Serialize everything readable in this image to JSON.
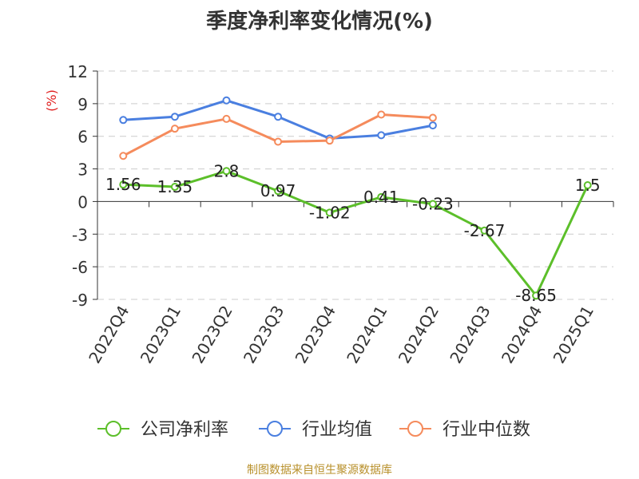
{
  "chart_data": {
    "type": "line",
    "title": "季度净利率变化情况(%)",
    "ylabel": "(%)",
    "ylim": [
      -9,
      12
    ],
    "yticks": [
      12,
      9,
      6,
      3,
      0,
      -3,
      -6,
      -9
    ],
    "grid": true,
    "legend_position": "bottom",
    "categories": [
      "2022Q4",
      "2023Q1",
      "2023Q2",
      "2023Q3",
      "2023Q4",
      "2024Q1",
      "2024Q2",
      "2024Q3",
      "2024Q4",
      "2025Q1"
    ],
    "series": [
      {
        "name": "公司净利率",
        "color": "#5cbf2a",
        "values": [
          1.56,
          1.35,
          2.8,
          0.97,
          -1.02,
          0.41,
          -0.23,
          -2.67,
          -8.65,
          1.5
        ],
        "labels": [
          "1.56",
          "1.35",
          "2.8",
          "0.97",
          "-1.02",
          "0.41",
          "-0.23",
          "-2.67",
          "-8.65",
          "1.5"
        ]
      },
      {
        "name": "行业均值",
        "color": "#4a7fe0",
        "values": [
          7.5,
          7.8,
          9.3,
          7.8,
          5.8,
          6.1,
          7.0,
          null,
          null,
          null
        ]
      },
      {
        "name": "行业中位数",
        "color": "#f58b5c",
        "values": [
          4.2,
          6.7,
          7.6,
          5.5,
          5.6,
          8.0,
          7.7,
          null,
          null,
          null
        ]
      }
    ]
  },
  "footer": "制图数据来自恒生聚源数据库"
}
